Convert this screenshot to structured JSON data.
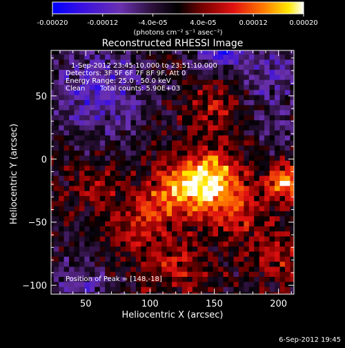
{
  "colorbar": {
    "ticks": [
      "-0.00020",
      "-0.00012",
      "-4.0e-05",
      "4.0e-05",
      "0.00012",
      "0.00020"
    ],
    "tick_values": [
      -0.0002,
      -0.00012,
      -4e-05,
      4e-05,
      0.00012,
      0.0002
    ],
    "unit_label": "(photons cm⁻² s⁻¹ asec⁻²)"
  },
  "chart_data": {
    "type": "heatmap",
    "title": "Reconstructed RHESSI Image",
    "xlabel": "Heliocentric X (arcsec)",
    "ylabel": "Heliocentric Y (arcsec)",
    "xlim": [
      23,
      212
    ],
    "ylim": [
      -107,
      86
    ],
    "x_ticks": [
      50,
      100,
      150,
      200
    ],
    "y_ticks": [
      -100,
      -50,
      0,
      50
    ],
    "x_tick_labels": [
      "50",
      "100",
      "150",
      "200"
    ],
    "y_tick_labels": [
      "−100",
      "−50",
      "0",
      "50"
    ],
    "peak_position": [
      148,
      -18
    ],
    "value_range": [
      -0.0002,
      0.0002
    ],
    "colormap": "blue-purple-black-red-yellow-white",
    "pixel_size_arcsec": 4,
    "annotations": {
      "time_range": "1-Sep-2012 23:45:10.000 to 23:51:10.000",
      "detectors": "Detectors: 3F 5F 6F 7F 8F 9F, Att 0",
      "energy": "Energy Range: 25.0 - 50.0 keV",
      "method": "Clean",
      "total_counts": "Total counts: 5.90E+03",
      "peak_text": "Position of Peak = [148,-18]"
    }
  },
  "footer": {
    "date": "6-Sep-2012 19:45"
  }
}
